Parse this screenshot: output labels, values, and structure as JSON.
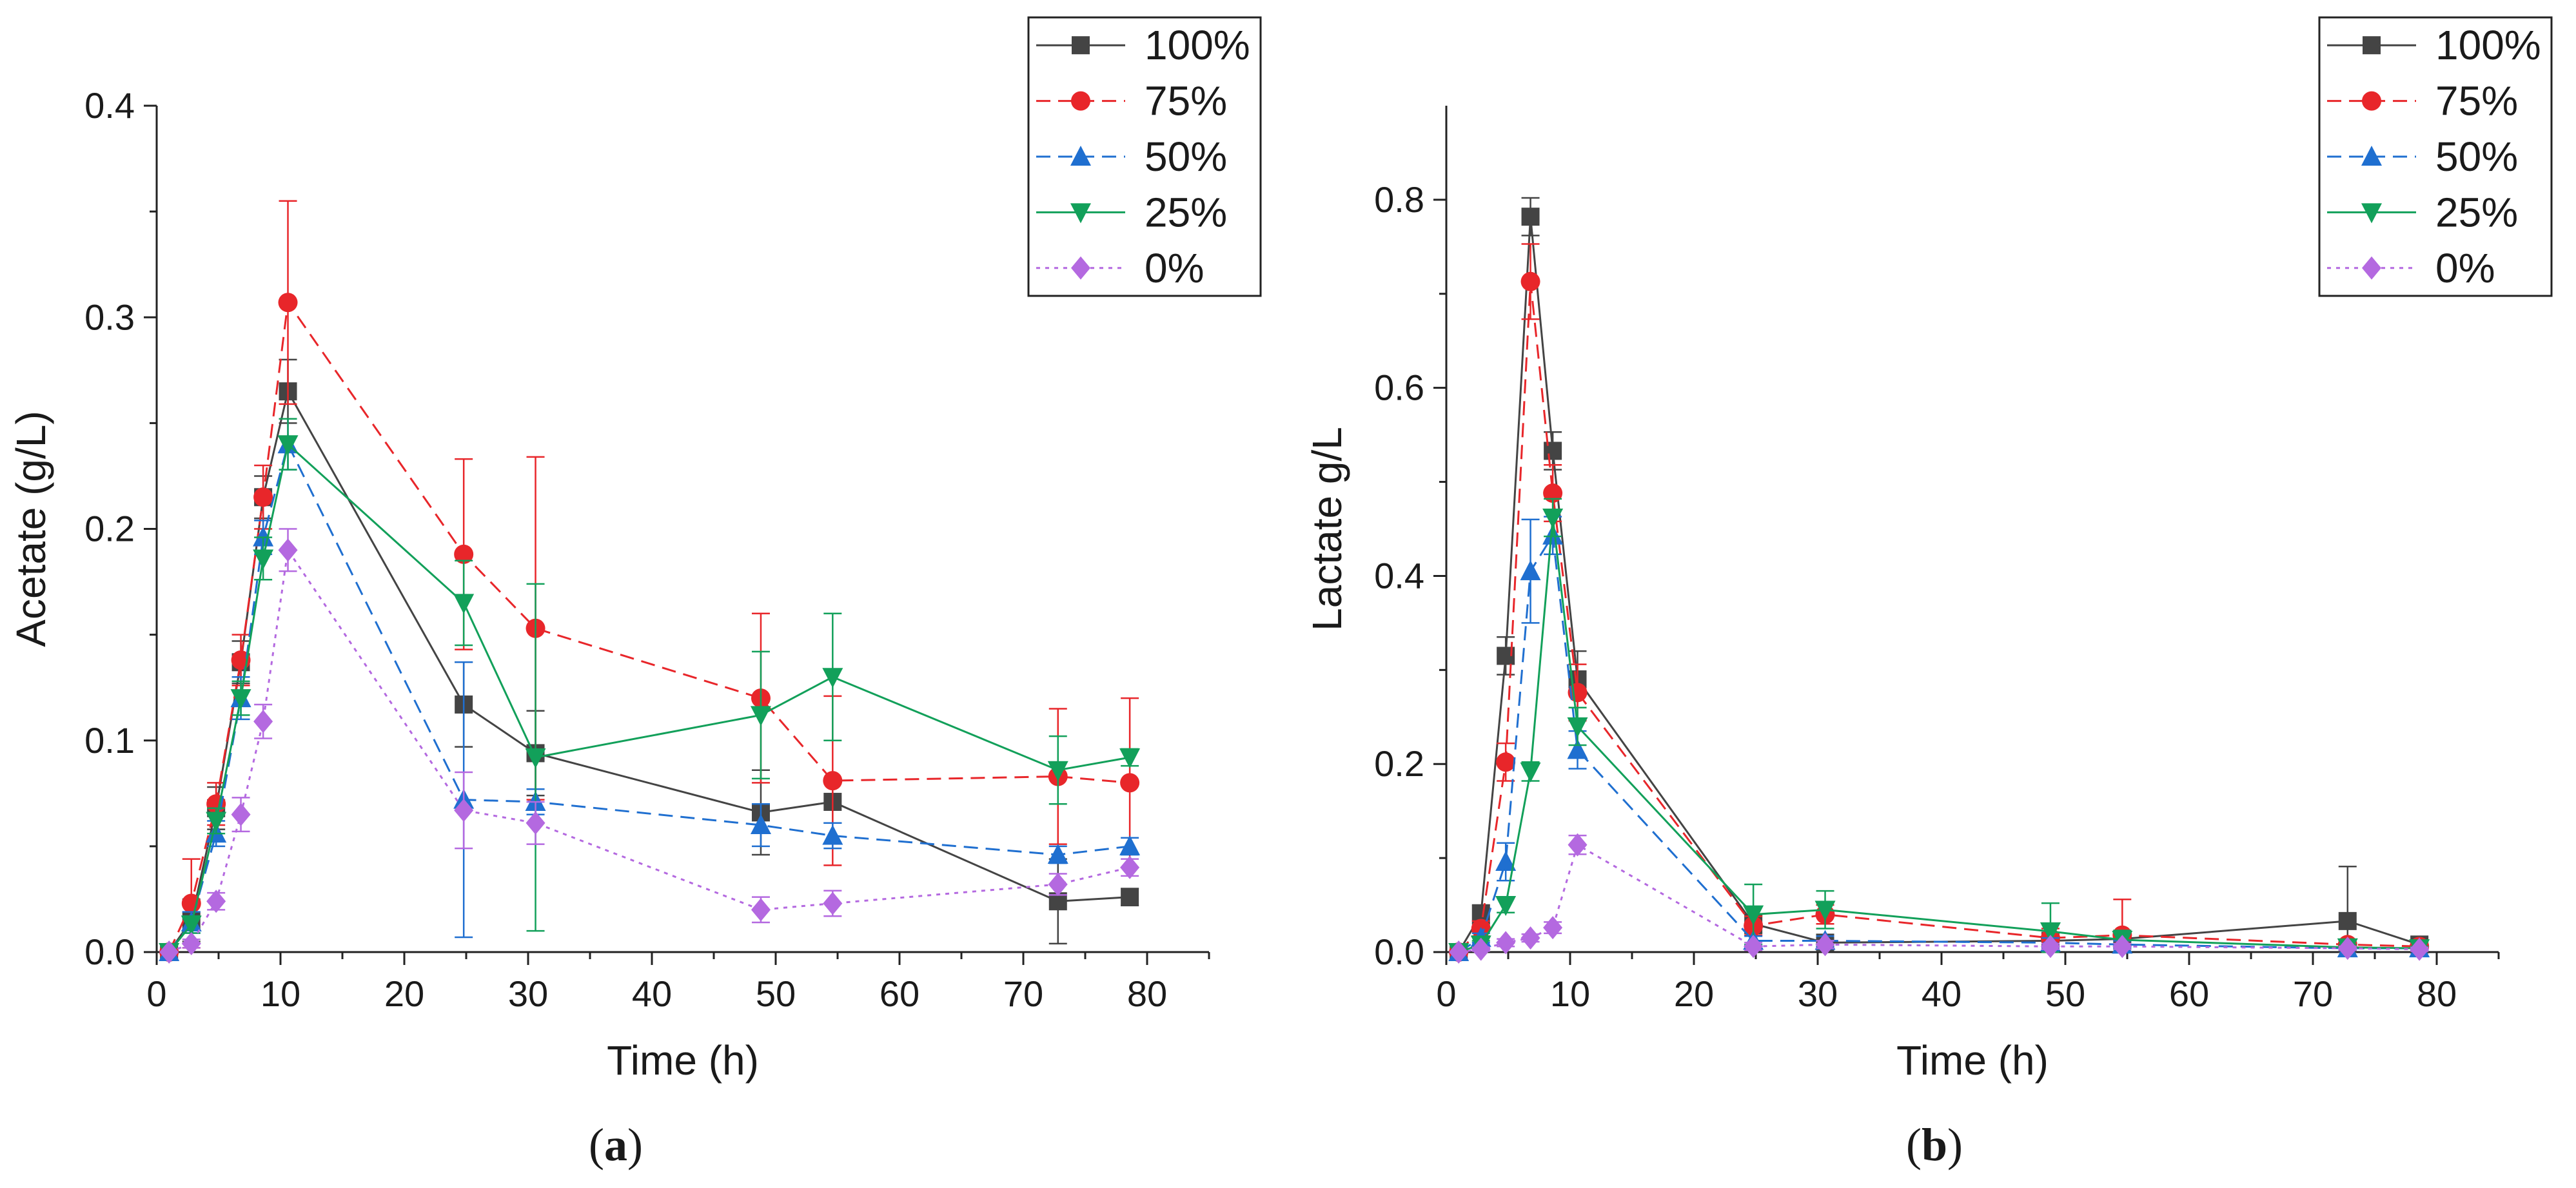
{
  "chart_data": [
    {
      "type": "line",
      "panel_label": "(a)",
      "panel_label_bold": "a",
      "xlabel": "Time (h)",
      "ylabel": "Acetate (g/L)",
      "xlim": [
        0,
        85
      ],
      "ylim": [
        0,
        0.4
      ],
      "xticks": [
        0,
        10,
        20,
        30,
        40,
        50,
        60,
        70,
        80
      ],
      "yticks": [
        0.0,
        0.1,
        0.2,
        0.3,
        0.4
      ],
      "ytick_labels": [
        "0.0",
        "0.1",
        "0.2",
        "0.3",
        "0.4"
      ],
      "grid": false,
      "legend_position": "top-right",
      "series": [
        {
          "name": "100%",
          "color": "#444444",
          "marker": "square",
          "line": "solid",
          "x": [
            1,
            2.8,
            4.8,
            6.8,
            8.6,
            10.6,
            24.8,
            30.6,
            48.8,
            54.6,
            72.8,
            78.6
          ],
          "y": [
            0.0,
            0.015,
            0.068,
            0.137,
            0.215,
            0.265,
            0.117,
            0.094,
            0.066,
            0.071,
            0.024,
            0.026
          ],
          "err": [
            0,
            0.01,
            0.01,
            0.01,
            0.01,
            0.015,
            0.02,
            0.02,
            0.02,
            0.01,
            0.02,
            0.004
          ]
        },
        {
          "name": "75%",
          "color": "#e8262a",
          "marker": "circle",
          "line": "dashed",
          "x": [
            1,
            2.8,
            4.8,
            6.8,
            8.6,
            10.6,
            24.8,
            30.6,
            48.8,
            54.6,
            72.8,
            78.6
          ],
          "y": [
            0.0,
            0.023,
            0.07,
            0.138,
            0.215,
            0.307,
            0.188,
            0.153,
            0.12,
            0.081,
            0.083,
            0.08
          ],
          "err": [
            0,
            0.021,
            0.01,
            0.012,
            0.015,
            0.048,
            0.045,
            0.081,
            0.04,
            0.04,
            0.032,
            0.04
          ]
        },
        {
          "name": "50%",
          "color": "#1f6fd0",
          "marker": "triangle-up",
          "line": "dashed",
          "x": [
            1,
            2.8,
            4.8,
            6.8,
            8.6,
            10.6,
            24.8,
            30.6,
            48.8,
            54.6,
            72.8,
            78.6
          ],
          "y": [
            0.0,
            0.014,
            0.056,
            0.12,
            0.196,
            0.24,
            0.072,
            0.071,
            0.06,
            0.055,
            0.046,
            0.05
          ],
          "err": [
            0,
            0.005,
            0.006,
            0.01,
            0.008,
            0.012,
            0.065,
            0.006,
            0.01,
            0.006,
            0.004,
            0.004
          ]
        },
        {
          "name": "25%",
          "color": "#12a05a",
          "marker": "triangle-down",
          "line": "solid",
          "x": [
            1,
            2.8,
            4.8,
            6.8,
            8.6,
            10.6,
            24.8,
            30.6,
            48.8,
            54.6,
            72.8,
            78.6
          ],
          "y": [
            0.0,
            0.013,
            0.062,
            0.12,
            0.186,
            0.24,
            0.165,
            0.092,
            0.112,
            0.13,
            0.086,
            0.092
          ],
          "err": [
            0,
            0.004,
            0.006,
            0.008,
            0.01,
            0.012,
            0.02,
            0.082,
            0.03,
            0.03,
            0.016,
            0.004
          ]
        },
        {
          "name": "0%",
          "color": "#b469e0",
          "marker": "diamond",
          "line": "dotted",
          "x": [
            1,
            2.8,
            4.8,
            6.8,
            8.6,
            10.6,
            24.8,
            30.6,
            48.8,
            54.6,
            72.8,
            78.6
          ],
          "y": [
            0.0,
            0.004,
            0.024,
            0.065,
            0.109,
            0.19,
            0.067,
            0.061,
            0.02,
            0.023,
            0.032,
            0.04
          ],
          "err": [
            0,
            0.002,
            0.004,
            0.008,
            0.008,
            0.01,
            0.018,
            0.01,
            0.006,
            0.006,
            0.005,
            0.004
          ]
        }
      ]
    },
    {
      "type": "line",
      "panel_label": "(b)",
      "panel_label_bold": "b",
      "xlabel": "Time (h)",
      "ylabel": "Lactate g/L",
      "xlim": [
        0,
        85
      ],
      "ylim": [
        0,
        0.9
      ],
      "xticks": [
        0,
        10,
        20,
        30,
        40,
        50,
        60,
        70,
        80
      ],
      "yticks": [
        0.0,
        0.2,
        0.4,
        0.6,
        0.8
      ],
      "ytick_labels": [
        "0.0",
        "0.2",
        "0.4",
        "0.6",
        "0.8"
      ],
      "grid": false,
      "legend_position": "top-right",
      "series": [
        {
          "name": "100%",
          "color": "#444444",
          "marker": "square",
          "line": "solid",
          "x": [
            1,
            2.8,
            4.8,
            6.8,
            8.6,
            10.6,
            24.8,
            30.6,
            48.8,
            54.6,
            72.8,
            78.6
          ],
          "y": [
            0.0,
            0.04,
            0.315,
            0.782,
            0.533,
            0.29,
            0.03,
            0.01,
            0.012,
            0.014,
            0.033,
            0.008
          ],
          "err": [
            0,
            0.01,
            0.02,
            0.02,
            0.02,
            0.03,
            0.01,
            0.005,
            0.005,
            0.005,
            0.058,
            0.004
          ]
        },
        {
          "name": "75%",
          "color": "#e8262a",
          "marker": "circle",
          "line": "dashed",
          "x": [
            1,
            2.8,
            4.8,
            6.8,
            8.6,
            10.6,
            24.8,
            30.6,
            48.8,
            54.6,
            72.8,
            78.6
          ],
          "y": [
            0.0,
            0.025,
            0.202,
            0.713,
            0.488,
            0.276,
            0.028,
            0.04,
            0.015,
            0.018,
            0.008,
            0.006
          ],
          "err": [
            0,
            0.008,
            0.02,
            0.04,
            0.03,
            0.03,
            0.01,
            0.01,
            0.01,
            0.038,
            0.004,
            0.003
          ]
        },
        {
          "name": "50%",
          "color": "#1f6fd0",
          "marker": "triangle-up",
          "line": "dashed",
          "x": [
            1,
            2.8,
            4.8,
            6.8,
            8.6,
            10.6,
            24.8,
            30.6,
            48.8,
            54.6,
            72.8,
            78.6
          ],
          "y": [
            0.0,
            0.015,
            0.096,
            0.405,
            0.443,
            0.215,
            0.012,
            0.012,
            0.01,
            0.008,
            0.004,
            0.004
          ],
          "err": [
            0,
            0.005,
            0.02,
            0.055,
            0.02,
            0.02,
            0.005,
            0.005,
            0.005,
            0.004,
            0.002,
            0.002
          ]
        },
        {
          "name": "25%",
          "color": "#12a05a",
          "marker": "triangle-down",
          "line": "solid",
          "x": [
            1,
            2.8,
            4.8,
            6.8,
            8.6,
            10.6,
            24.8,
            30.6,
            48.8,
            54.6,
            72.8,
            78.6
          ],
          "y": [
            0.0,
            0.008,
            0.05,
            0.192,
            0.462,
            0.24,
            0.04,
            0.045,
            0.022,
            0.013,
            0.005,
            0.004
          ],
          "err": [
            0,
            0.004,
            0.008,
            0.01,
            0.02,
            0.02,
            0.032,
            0.02,
            0.03,
            0.01,
            0.003,
            0.002
          ]
        },
        {
          "name": "0%",
          "color": "#b469e0",
          "marker": "diamond",
          "line": "dotted",
          "x": [
            1,
            2.8,
            4.8,
            6.8,
            8.6,
            10.6,
            24.8,
            30.6,
            48.8,
            54.6,
            72.8,
            78.6
          ],
          "y": [
            0.0,
            0.003,
            0.01,
            0.015,
            0.026,
            0.114,
            0.006,
            0.008,
            0.006,
            0.006,
            0.004,
            0.003
          ],
          "err": [
            0,
            0.002,
            0.004,
            0.004,
            0.006,
            0.01,
            0.004,
            0.004,
            0.003,
            0.003,
            0.002,
            0.002
          ]
        }
      ]
    }
  ]
}
